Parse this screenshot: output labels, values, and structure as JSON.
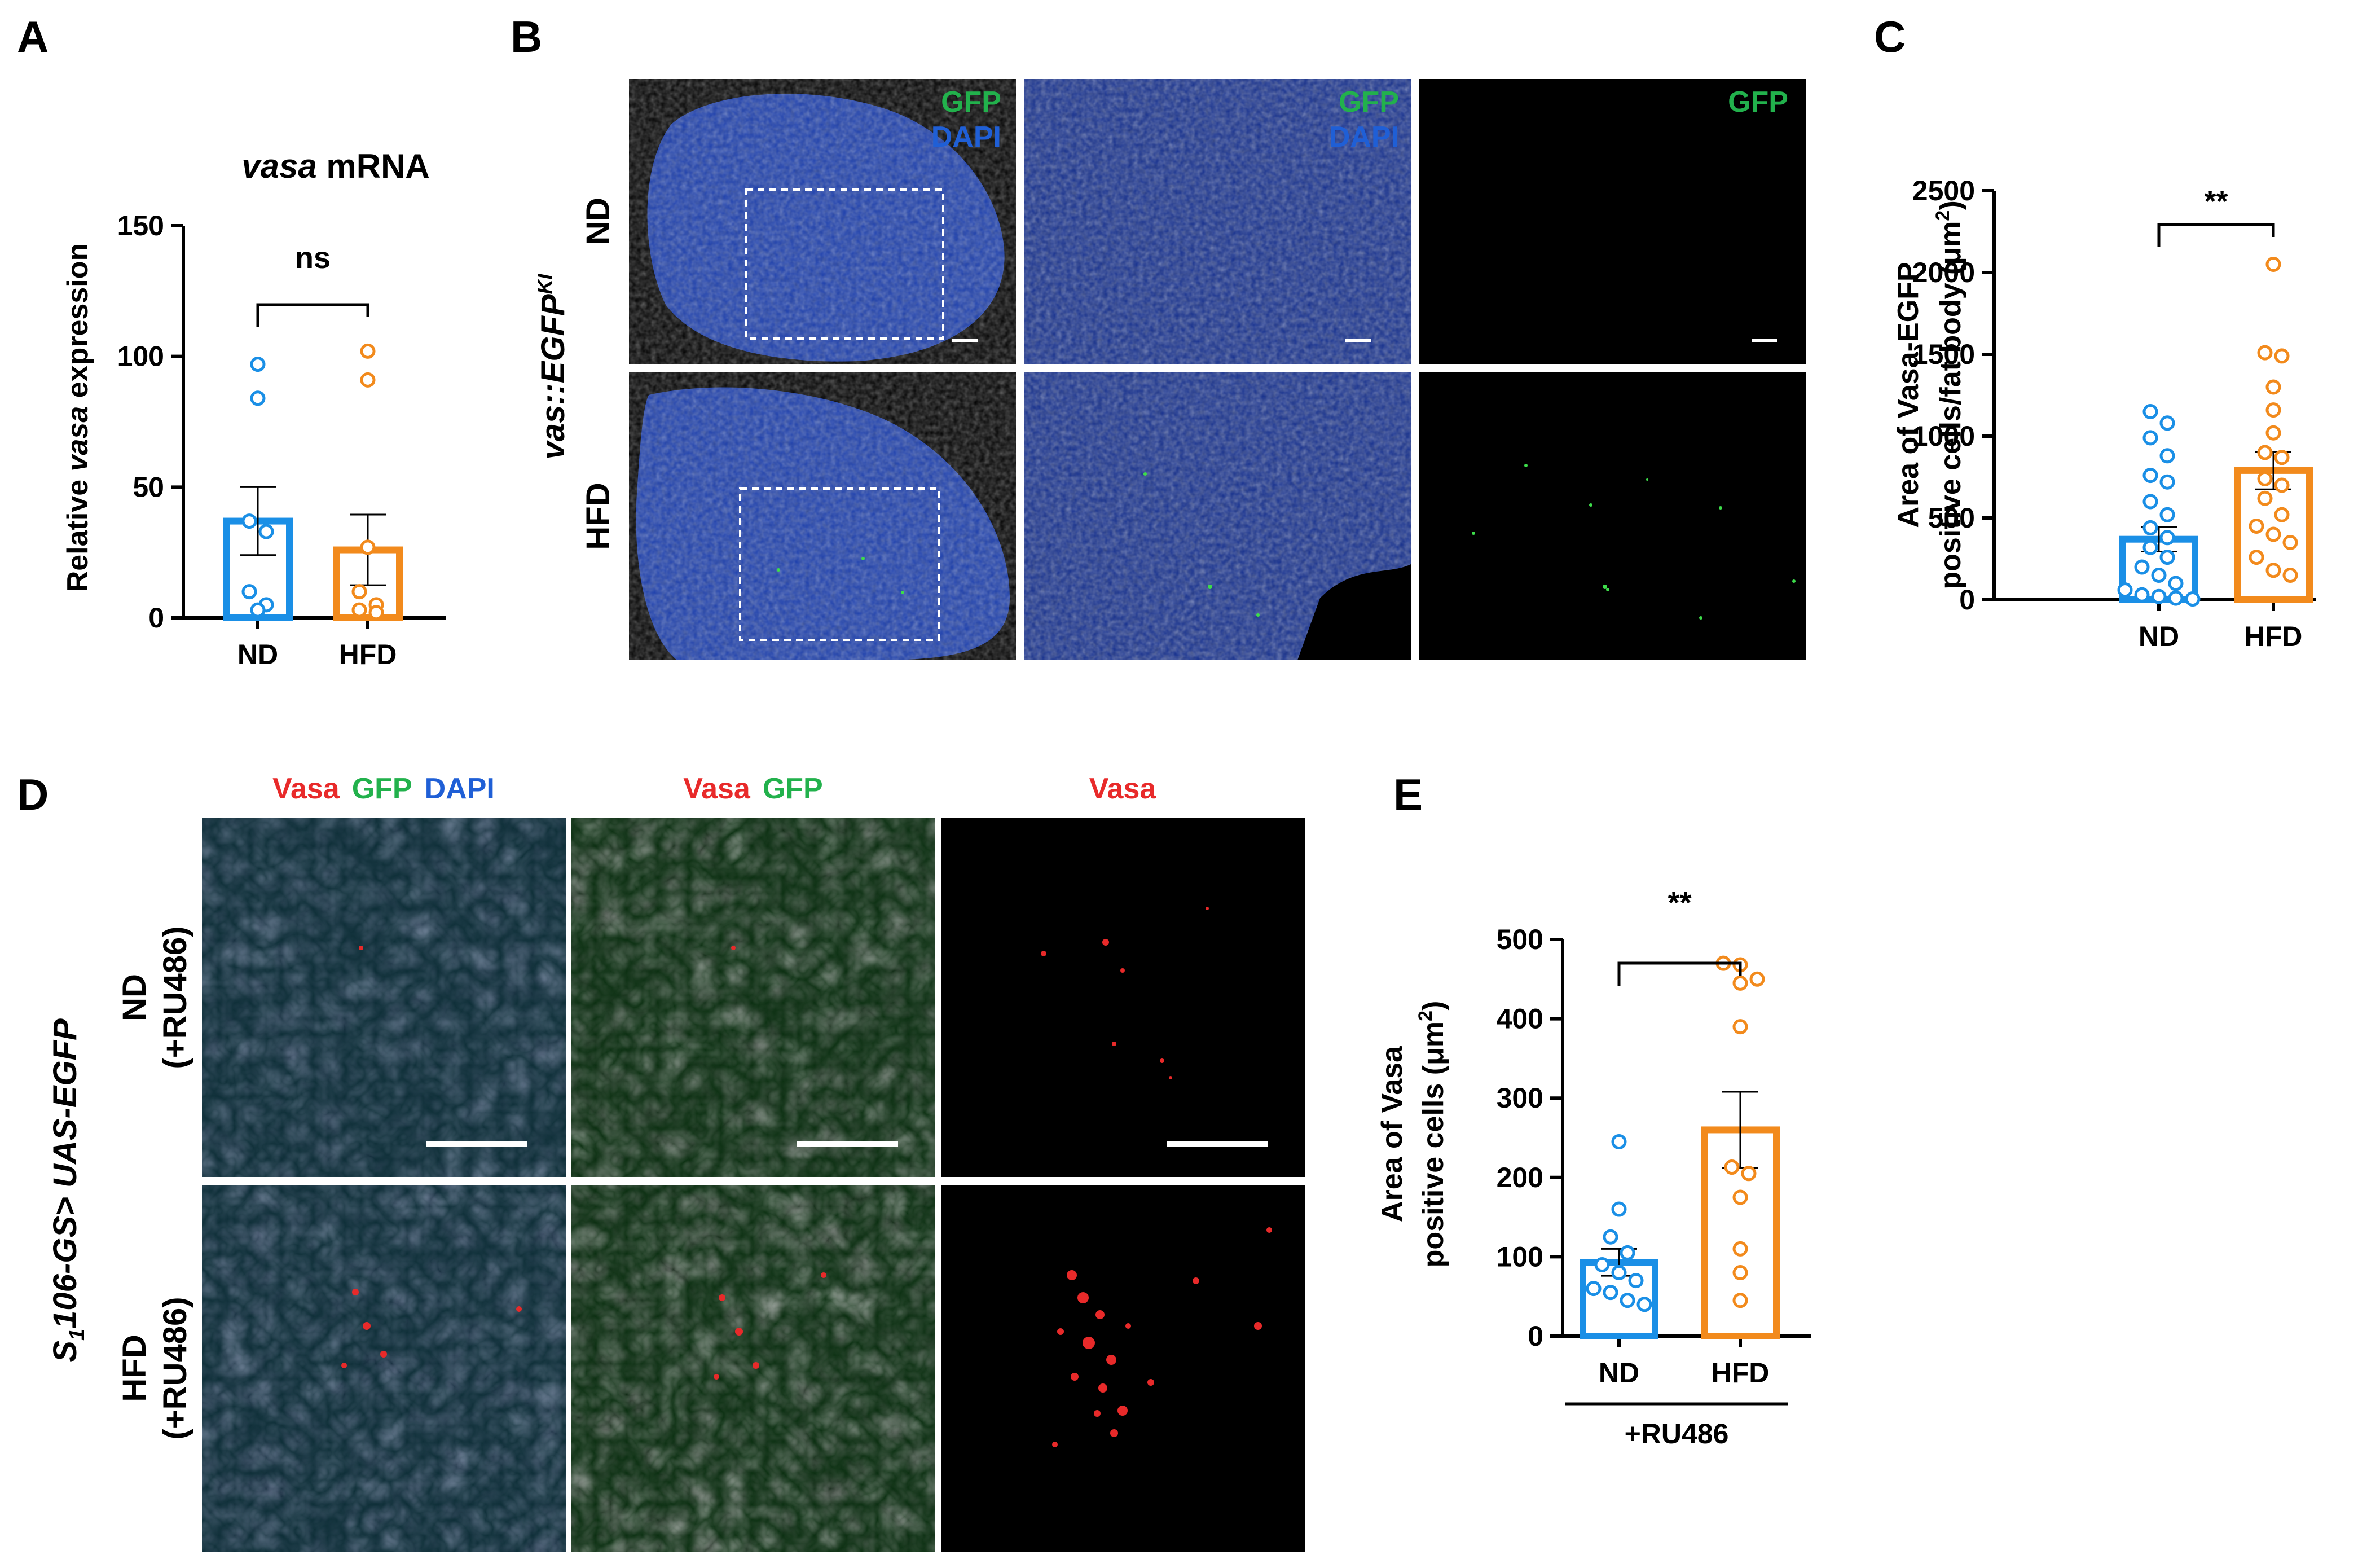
{
  "colors": {
    "nd": "#1a8fe6",
    "hfd": "#f28a1c",
    "gfp": "#22b14c",
    "dapi": "#1f5fd6",
    "vasa": "#e82a2a"
  },
  "panel_letters": {
    "a": "A",
    "b": "B",
    "c": "C",
    "d": "D",
    "e": "E"
  },
  "panel_b": {
    "genotype_italic": "vas::EGFP",
    "genotype_sup": "KI",
    "rows": [
      "ND",
      "HFD"
    ],
    "columns": [
      {
        "gfp": "GFP",
        "dapi": "DAPI"
      },
      {
        "gfp": "GFP",
        "dapi": "DAPI"
      },
      {
        "gfp": "GFP"
      }
    ]
  },
  "panel_d": {
    "genotype_s": "S",
    "genotype_sub": "1",
    "genotype_rest": "106-GS> UAS-EGFP",
    "rows": [
      {
        "line1": "ND",
        "line2": "(+RU486)"
      },
      {
        "line1": "HFD",
        "line2": "(+RU486)"
      }
    ],
    "columns": [
      {
        "vasa": "Vasa",
        "gfp": "GFP",
        "dapi": "DAPI"
      },
      {
        "vasa": "Vasa",
        "gfp": "GFP"
      },
      {
        "vasa": "Vasa"
      }
    ]
  },
  "chart_data": [
    {
      "panel": "A",
      "type": "bar",
      "title_italic": "vasa",
      "title_rest": " mRNA",
      "ylabel_pre": "Relative ",
      "ylabel_italic": "vasa",
      "ylabel_post": " expression",
      "categories": [
        "ND",
        "HFD"
      ],
      "ylim": [
        0,
        150
      ],
      "yticks": [
        "0",
        "50",
        "100",
        "150"
      ],
      "values": [
        37,
        26
      ],
      "sem": [
        13,
        13.5
      ],
      "points": [
        [
          97,
          84,
          37,
          33,
          10,
          5,
          3
        ],
        [
          102,
          91,
          27,
          10,
          5,
          3,
          2
        ]
      ],
      "significance": "ns"
    },
    {
      "panel": "C",
      "type": "bar",
      "ylabel_line1": "Area of Vasa-EGFP",
      "ylabel_line2_pre": "positive cells/fat body (μm",
      "ylabel_sup": "2",
      "ylabel_line2_post": ")",
      "categories": [
        "ND",
        "HFD"
      ],
      "ylim": [
        0,
        2500
      ],
      "yticks": [
        "0",
        "500",
        "1000",
        "1500",
        "2000",
        "2500"
      ],
      "values": [
        370,
        790
      ],
      "sem": [
        75,
        115
      ],
      "points": [
        [
          1150,
          1080,
          990,
          880,
          760,
          720,
          600,
          520,
          440,
          380,
          320,
          260,
          200,
          150,
          100,
          60,
          30,
          20,
          10,
          5
        ],
        [
          2050,
          1510,
          1490,
          1300,
          1160,
          1020,
          900,
          870,
          740,
          700,
          620,
          520,
          450,
          400,
          350,
          260,
          180,
          150
        ]
      ],
      "significance": "**"
    },
    {
      "panel": "E",
      "type": "bar",
      "ylabel_line1": "Area of Vasa",
      "ylabel_line2_pre": "positive cells (μm",
      "ylabel_sup": "2",
      "ylabel_line2_post": ")",
      "categories": [
        "ND",
        "HFD"
      ],
      "group_label": "+RU486",
      "ylim": [
        0,
        500
      ],
      "yticks": [
        "0",
        "100",
        "200",
        "300",
        "400",
        "500"
      ],
      "values": [
        93,
        260
      ],
      "sem": [
        17,
        48
      ],
      "points": [
        [
          245,
          160,
          125,
          105,
          90,
          80,
          70,
          60,
          55,
          45,
          40
        ],
        [
          470,
          468,
          450,
          445,
          390,
          213,
          205,
          175,
          110,
          80,
          45
        ]
      ],
      "significance": "**"
    }
  ]
}
